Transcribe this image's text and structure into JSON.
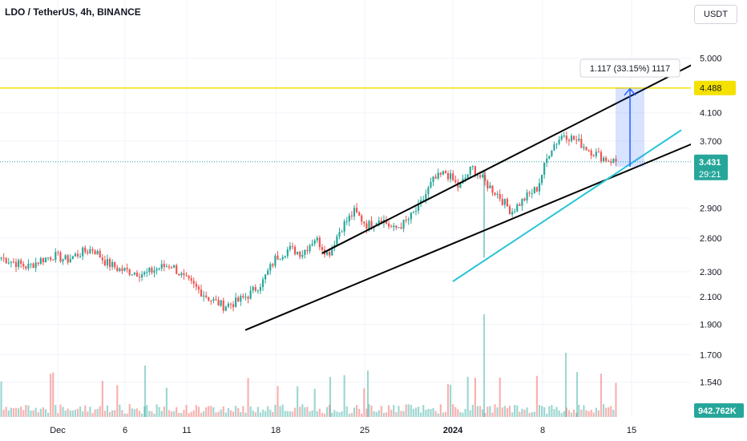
{
  "header": {
    "title": "LDO / TetherUS, 4h, BINANCE",
    "currency": "USDT"
  },
  "colors": {
    "up": "#26a69a",
    "down": "#ef5350",
    "resistance": "#f5e100",
    "channel": "#000000",
    "trendline_cyan": "#29c5d6",
    "projection": "#2962ff"
  },
  "chart_data": {
    "type": "candlestick",
    "y_scale": "log",
    "ylim": [
      1.48,
      5.5
    ],
    "y_ticks": [
      "5.000",
      "4.100",
      "3.700",
      "2.900",
      "2.600",
      "2.300",
      "2.100",
      "1.900",
      "1.700",
      "1.540"
    ],
    "x_ticks": [
      "Dec",
      "6",
      "11",
      "18",
      "25",
      "2024",
      "8",
      "15"
    ],
    "markers": {
      "resistance": {
        "label": "4.488",
        "value": 4.488
      },
      "last_price": {
        "label": "3.431",
        "value": 3.431,
        "countdown": "29:21"
      },
      "volume_last": {
        "label": "942.762K"
      }
    },
    "measurement": {
      "label": "1.117 (33.15%) 1117",
      "from": 3.37,
      "to": 4.488
    },
    "price_anchors": [
      [
        "Dec",
        2.42
      ],
      [
        "",
        2.38
      ],
      [
        "",
        2.34
      ],
      [
        "",
        2.4
      ],
      [
        "",
        2.44
      ],
      [
        "",
        2.4
      ],
      [
        "6",
        2.46
      ],
      [
        "",
        2.5
      ],
      [
        "",
        2.38
      ],
      [
        "11",
        2.32
      ],
      [
        "",
        2.3
      ],
      [
        "",
        2.28
      ],
      [
        "",
        2.33
      ],
      [
        "",
        2.36
      ],
      [
        "",
        2.24
      ],
      [
        "",
        2.16
      ],
      [
        "18",
        2.08
      ],
      [
        "",
        2.03
      ],
      [
        "",
        2.06
      ],
      [
        "",
        2.12
      ],
      [
        "",
        2.22
      ],
      [
        "",
        2.42
      ],
      [
        "25",
        2.5
      ],
      [
        "",
        2.46
      ],
      [
        "",
        2.6
      ],
      [
        "",
        2.45
      ],
      [
        "",
        2.7
      ],
      [
        "",
        2.86
      ],
      [
        "",
        2.72
      ],
      [
        "",
        2.8
      ],
      [
        "2024",
        2.68
      ],
      [
        "",
        2.76
      ],
      [
        "",
        2.92
      ],
      [
        "",
        3.2
      ],
      [
        "",
        3.3
      ],
      [
        "",
        3.12
      ],
      [
        "",
        3.36
      ],
      [
        "",
        3.18
      ],
      [
        "",
        3.04
      ],
      [
        "8",
        2.86
      ],
      [
        "",
        3.0
      ],
      [
        "",
        3.12
      ],
      [
        "",
        3.6
      ],
      [
        "",
        3.8
      ],
      [
        "",
        3.7
      ],
      [
        "",
        3.58
      ],
      [
        "",
        3.48
      ],
      [
        "",
        3.43
      ]
    ],
    "volume_peaks": [
      "18",
      "2024",
      "8"
    ]
  }
}
